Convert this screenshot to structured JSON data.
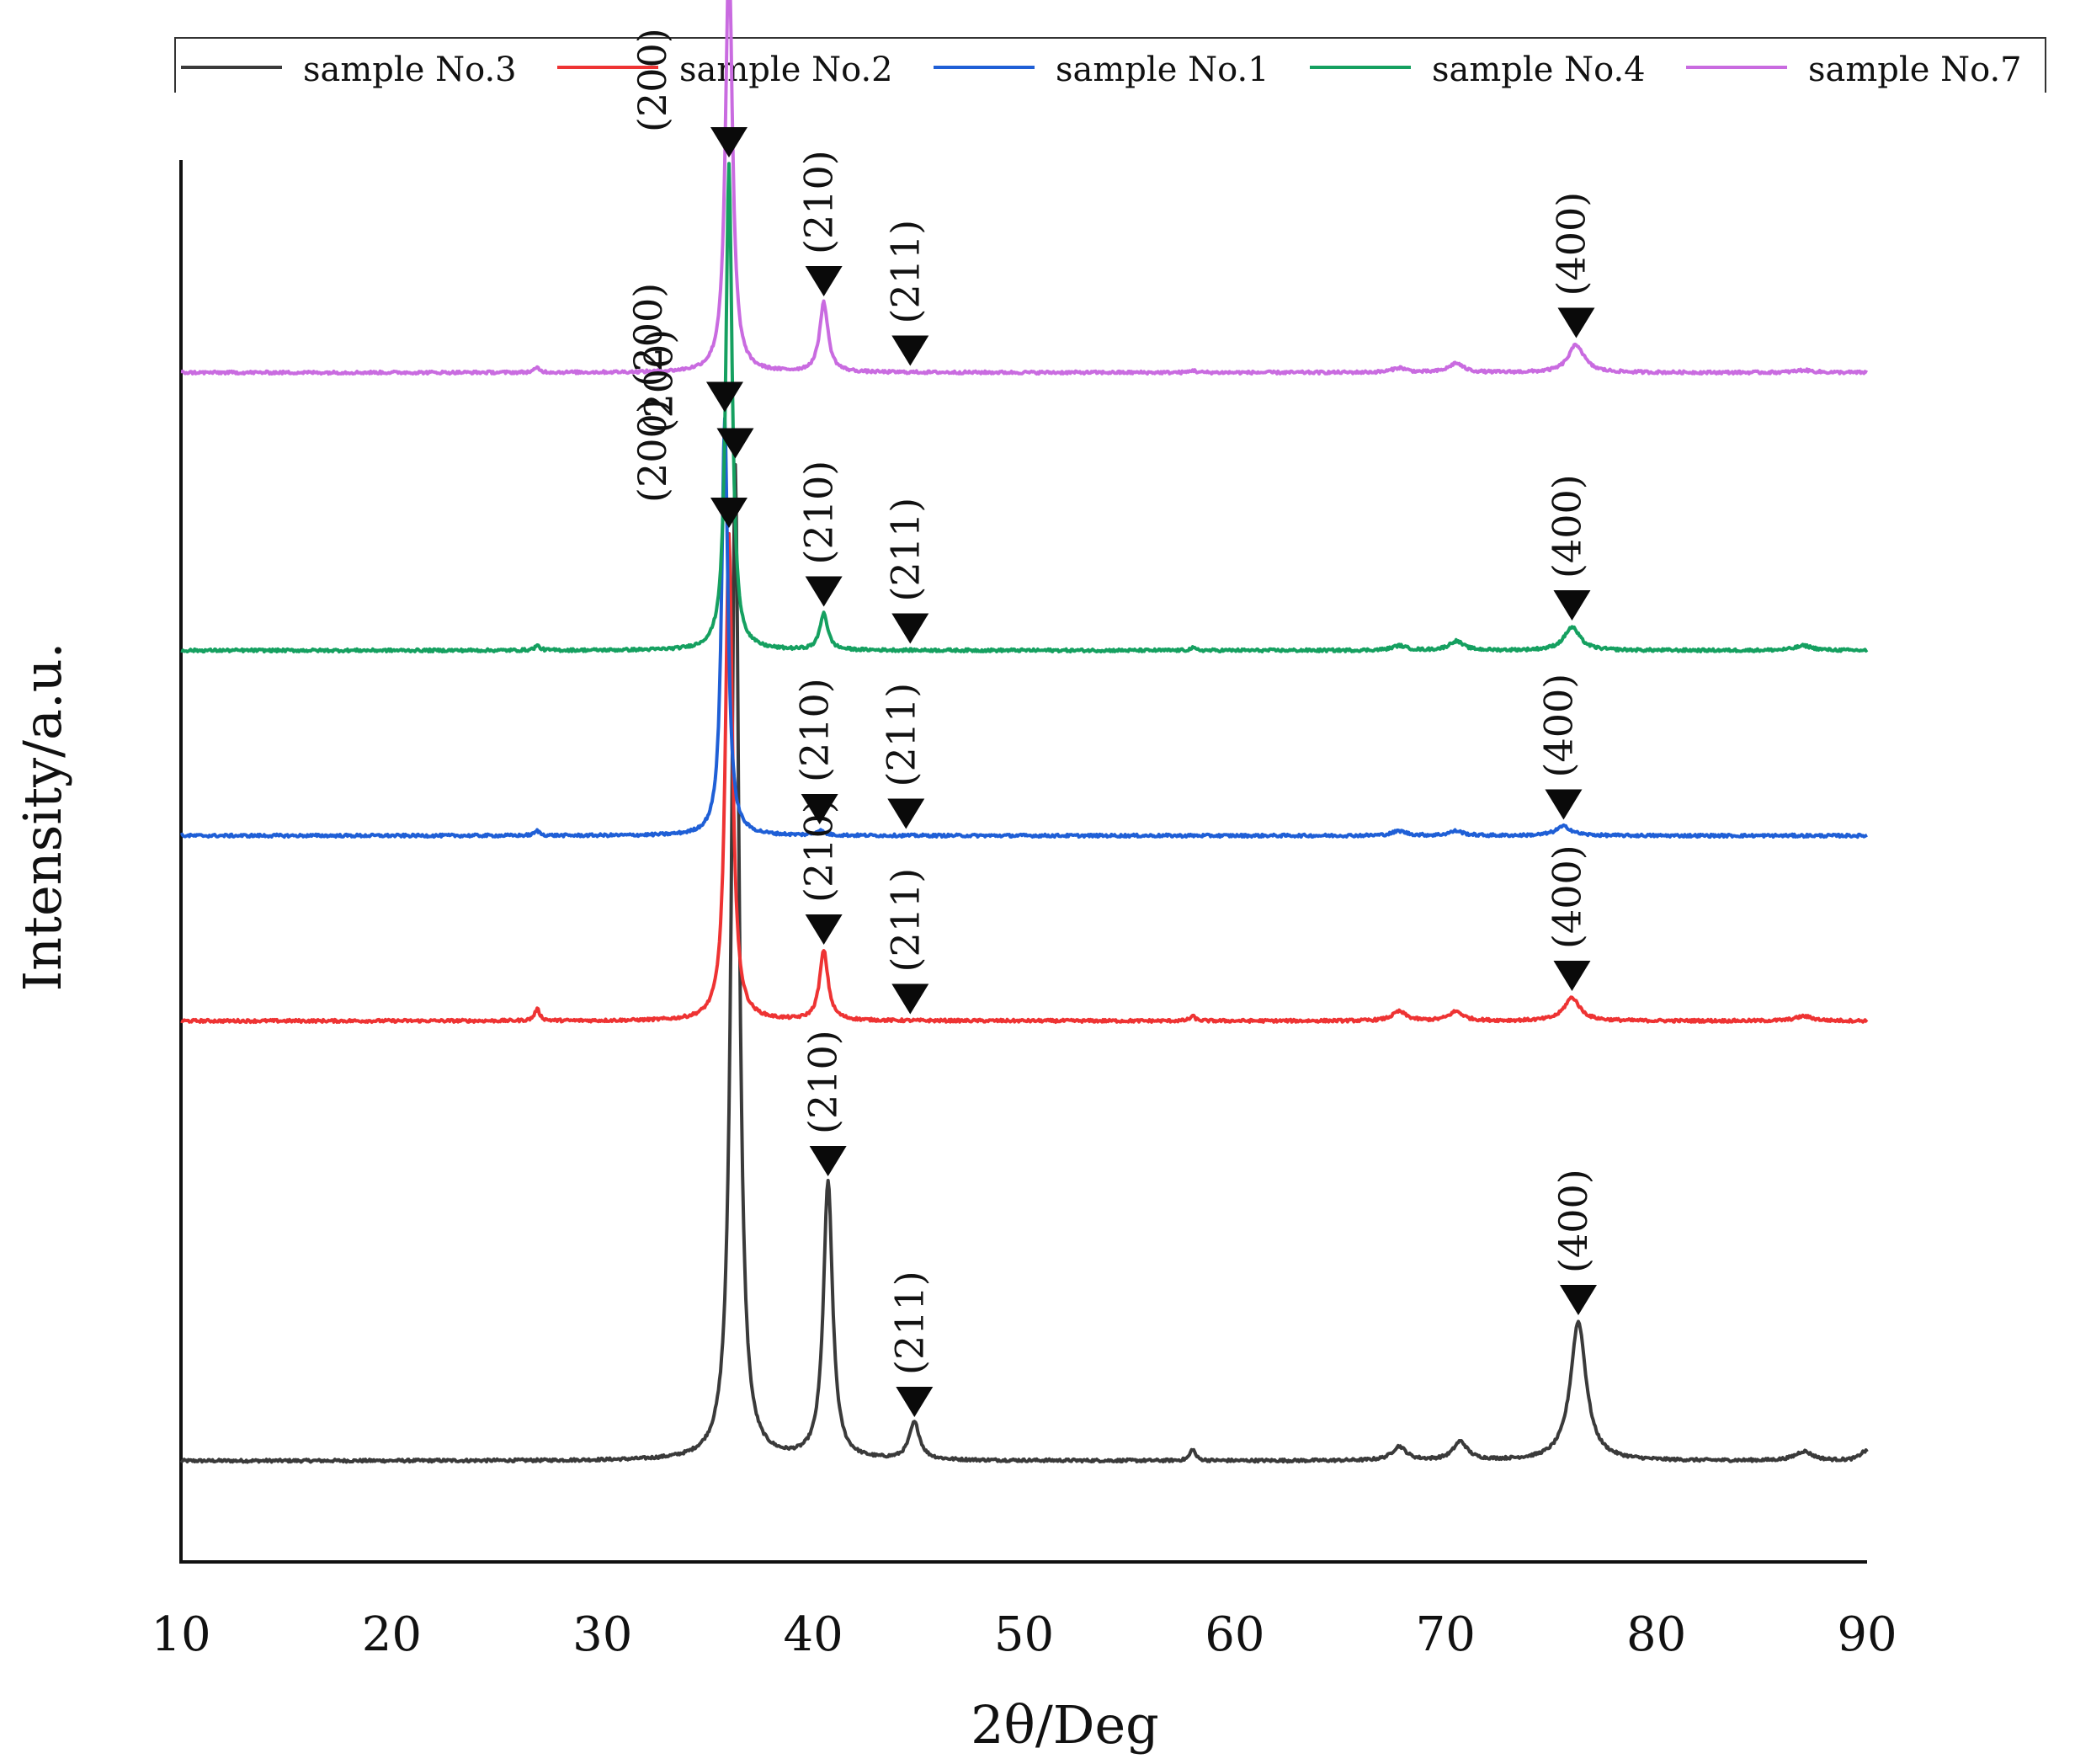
{
  "chart_data": {
    "type": "line",
    "title": "",
    "xlabel": "2θ/Deg",
    "ylabel": "Intensity/a.u.",
    "xlim": [
      10,
      90
    ],
    "xticks": [
      "10",
      "20",
      "30",
      "40",
      "50",
      "60",
      "70",
      "80",
      "90"
    ],
    "legend_position": "top",
    "grid": false,
    "series": [
      {
        "name": "sample No.3",
        "color": "#3a3a3a",
        "baseline_level": 0.0,
        "peaks": [
          {
            "x": 26.9,
            "h": 0.0,
            "w": 0.15
          },
          {
            "x": 36.3,
            "h": 2.15,
            "w": 0.22
          },
          {
            "x": 40.7,
            "h": 0.6,
            "w": 0.26
          },
          {
            "x": 44.8,
            "h": 0.08,
            "w": 0.3
          },
          {
            "x": 58.0,
            "h": 0.025,
            "w": 0.15
          },
          {
            "x": 67.8,
            "h": 0.03,
            "w": 0.4
          },
          {
            "x": 70.7,
            "h": 0.04,
            "w": 0.4
          },
          {
            "x": 76.3,
            "h": 0.3,
            "w": 0.45
          },
          {
            "x": 87.0,
            "h": 0.02,
            "w": 0.5
          },
          {
            "x": 89.9,
            "h": 0.02,
            "w": 0.3
          }
        ],
        "peak_labels": [
          {
            "label": "(200)",
            "x": 36.3,
            "h": 2.15
          },
          {
            "label": "(210)",
            "x": 40.7,
            "h": 0.6
          },
          {
            "label": "(211)",
            "x": 44.8,
            "h": 0.08
          },
          {
            "label": "(400)",
            "x": 76.3,
            "h": 0.3
          }
        ]
      },
      {
        "name": "sample No.2",
        "color": "#ee3333",
        "baseline_level": 0.95,
        "peaks": [
          {
            "x": 26.9,
            "h": 0.025,
            "w": 0.15
          },
          {
            "x": 36.0,
            "h": 1.05,
            "w": 0.2
          },
          {
            "x": 40.5,
            "h": 0.15,
            "w": 0.24
          },
          {
            "x": 44.6,
            "h": 0.0,
            "w": 0.3
          },
          {
            "x": 58.0,
            "h": 0.01,
            "w": 0.15
          },
          {
            "x": 67.8,
            "h": 0.02,
            "w": 0.4
          },
          {
            "x": 70.5,
            "h": 0.02,
            "w": 0.4
          },
          {
            "x": 76.0,
            "h": 0.05,
            "w": 0.45
          },
          {
            "x": 87.0,
            "h": 0.01,
            "w": 0.5
          }
        ],
        "peak_labels": [
          {
            "label": "(200)",
            "x": 36.0,
            "h": 1.05
          },
          {
            "label": "(210)",
            "x": 40.5,
            "h": 0.15
          },
          {
            "label": "(211)",
            "x": 44.6,
            "h": 0.0
          },
          {
            "label": "(400)",
            "x": 76.0,
            "h": 0.05
          }
        ]
      },
      {
        "name": "sample No.1",
        "color": "#1f5fd6",
        "baseline_level": 1.35,
        "peaks": [
          {
            "x": 26.9,
            "h": 0.01,
            "w": 0.15
          },
          {
            "x": 35.8,
            "h": 0.9,
            "w": 0.18
          },
          {
            "x": 40.3,
            "h": 0.01,
            "w": 0.24
          },
          {
            "x": 44.4,
            "h": 0.0,
            "w": 0.3
          },
          {
            "x": 67.8,
            "h": 0.01,
            "w": 0.4
          },
          {
            "x": 70.5,
            "h": 0.01,
            "w": 0.4
          },
          {
            "x": 75.6,
            "h": 0.02,
            "w": 0.45
          }
        ],
        "peak_labels": [
          {
            "label": "(200)",
            "x": 35.8,
            "h": 0.9
          },
          {
            "label": "(210)",
            "x": 40.3,
            "h": 0.01
          },
          {
            "label": "(211)",
            "x": 44.4,
            "h": 0.0
          },
          {
            "label": "(400)",
            "x": 75.6,
            "h": 0.02
          }
        ]
      },
      {
        "name": "sample No.4",
        "color": "#15a060",
        "baseline_level": 1.75,
        "peaks": [
          {
            "x": 26.9,
            "h": 0.01,
            "w": 0.15
          },
          {
            "x": 36.0,
            "h": 1.05,
            "w": 0.18
          },
          {
            "x": 40.5,
            "h": 0.08,
            "w": 0.22
          },
          {
            "x": 44.6,
            "h": 0.0,
            "w": 0.3
          },
          {
            "x": 58.0,
            "h": 0.005,
            "w": 0.15
          },
          {
            "x": 67.8,
            "h": 0.01,
            "w": 0.4
          },
          {
            "x": 70.5,
            "h": 0.02,
            "w": 0.4
          },
          {
            "x": 76.0,
            "h": 0.05,
            "w": 0.45
          },
          {
            "x": 87.0,
            "h": 0.01,
            "w": 0.5
          }
        ],
        "peak_labels": [
          {
            "label": "(200)",
            "x": 36.0,
            "h": 1.05
          },
          {
            "label": "(210)",
            "x": 40.5,
            "h": 0.08
          },
          {
            "label": "(211)",
            "x": 44.6,
            "h": 0.0
          },
          {
            "label": "(400)",
            "x": 76.0,
            "h": 0.05
          }
        ]
      },
      {
        "name": "sample No.7",
        "color": "#c96be0",
        "baseline_level": 2.35,
        "peaks": [
          {
            "x": 26.9,
            "h": 0.01,
            "w": 0.15
          },
          {
            "x": 36.0,
            "h": 0.9,
            "w": 0.2
          },
          {
            "x": 40.5,
            "h": 0.15,
            "w": 0.24
          },
          {
            "x": 44.6,
            "h": 0.0,
            "w": 0.3
          },
          {
            "x": 58.0,
            "h": 0.005,
            "w": 0.15
          },
          {
            "x": 67.8,
            "h": 0.01,
            "w": 0.4
          },
          {
            "x": 70.5,
            "h": 0.02,
            "w": 0.4
          },
          {
            "x": 76.2,
            "h": 0.06,
            "w": 0.45
          },
          {
            "x": 87.0,
            "h": 0.005,
            "w": 0.5
          }
        ],
        "peak_labels": [
          {
            "label": "(200)",
            "x": 36.0,
            "h": 0.9
          },
          {
            "label": "(210)",
            "x": 40.5,
            "h": 0.15
          },
          {
            "label": "(211)",
            "x": 44.6,
            "h": 0.0
          },
          {
            "label": "(400)",
            "x": 76.2,
            "h": 0.06
          }
        ]
      }
    ]
  }
}
